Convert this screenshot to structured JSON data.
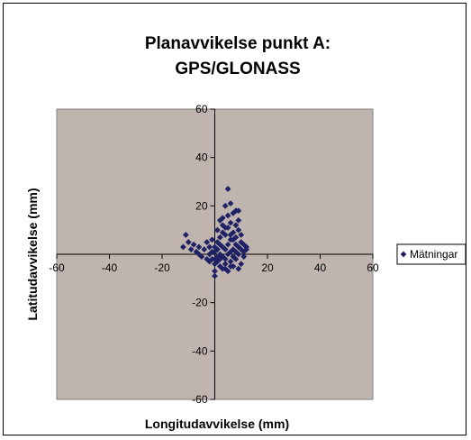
{
  "chart_data": {
    "type": "scatter",
    "title": [
      "Planavvikelse punkt A:",
      "GPS/GLONASS"
    ],
    "xlabel": "Longitudavvikelse (mm)",
    "ylabel": "Latitudavvikelse (mm)",
    "xlim": [
      -60,
      60
    ],
    "ylim": [
      -60,
      60
    ],
    "xticks": [
      -60,
      -40,
      -20,
      0,
      20,
      40,
      60
    ],
    "yticks": [
      -60,
      -40,
      -20,
      0,
      20,
      40,
      60
    ],
    "grid": false,
    "legend_position": "right",
    "plot_background": "#c0b4ae",
    "marker_color": "#1f2366",
    "series": [
      {
        "name": "Mätningar",
        "points": [
          [
            -11,
            8
          ],
          [
            -12,
            3
          ],
          [
            -10,
            5
          ],
          [
            -9,
            2
          ],
          [
            -8,
            4
          ],
          [
            -7,
            1
          ],
          [
            -6,
            0
          ],
          [
            -6,
            3
          ],
          [
            -5,
            -1
          ],
          [
            -4,
            2
          ],
          [
            -3,
            5
          ],
          [
            -2,
            0
          ],
          [
            -2,
            3
          ],
          [
            -1,
            -2
          ],
          [
            -1,
            6
          ],
          [
            0,
            1
          ],
          [
            0,
            -4
          ],
          [
            0,
            -7
          ],
          [
            0,
            3
          ],
          [
            0,
            -9
          ],
          [
            1,
            2
          ],
          [
            1,
            5
          ],
          [
            1,
            -3
          ],
          [
            1,
            10
          ],
          [
            2,
            0
          ],
          [
            2,
            -5
          ],
          [
            2,
            7
          ],
          [
            2,
            14
          ],
          [
            3,
            3
          ],
          [
            3,
            -1
          ],
          [
            3,
            15
          ],
          [
            3,
            -6
          ],
          [
            4,
            2
          ],
          [
            4,
            -2
          ],
          [
            4,
            8
          ],
          [
            4,
            20
          ],
          [
            4,
            -4
          ],
          [
            5,
            0
          ],
          [
            5,
            11
          ],
          [
            5,
            -7
          ],
          [
            5,
            27
          ],
          [
            5,
            4
          ],
          [
            6,
            13
          ],
          [
            6,
            21
          ],
          [
            6,
            1
          ],
          [
            6,
            -3
          ],
          [
            6,
            6
          ],
          [
            7,
            17
          ],
          [
            7,
            2
          ],
          [
            7,
            -5
          ],
          [
            7,
            9
          ],
          [
            7,
            -1
          ],
          [
            8,
            4
          ],
          [
            8,
            12
          ],
          [
            8,
            18
          ],
          [
            8,
            -2
          ],
          [
            8,
            7
          ],
          [
            9,
            0
          ],
          [
            9,
            14
          ],
          [
            9,
            3
          ],
          [
            9,
            -6
          ],
          [
            9,
            18
          ],
          [
            10,
            2
          ],
          [
            10,
            -4
          ],
          [
            10,
            5
          ],
          [
            10,
            8
          ],
          [
            11,
            1
          ],
          [
            11,
            -1
          ],
          [
            12,
            3
          ],
          [
            12,
            2
          ],
          [
            3,
            9
          ],
          [
            2,
            4
          ],
          [
            1,
            -1
          ],
          [
            0,
            -2
          ],
          [
            -1,
            1
          ],
          [
            -3,
            -2
          ],
          [
            4,
            11
          ],
          [
            6,
            8
          ],
          [
            7,
            6
          ],
          [
            5,
            16
          ],
          [
            3,
            12
          ],
          [
            2,
            -2
          ],
          [
            8,
            1
          ],
          [
            9,
            10
          ],
          [
            -2,
            -3
          ],
          [
            6,
            -5
          ],
          [
            4,
            -6
          ],
          [
            11,
            4
          ]
        ]
      }
    ]
  }
}
